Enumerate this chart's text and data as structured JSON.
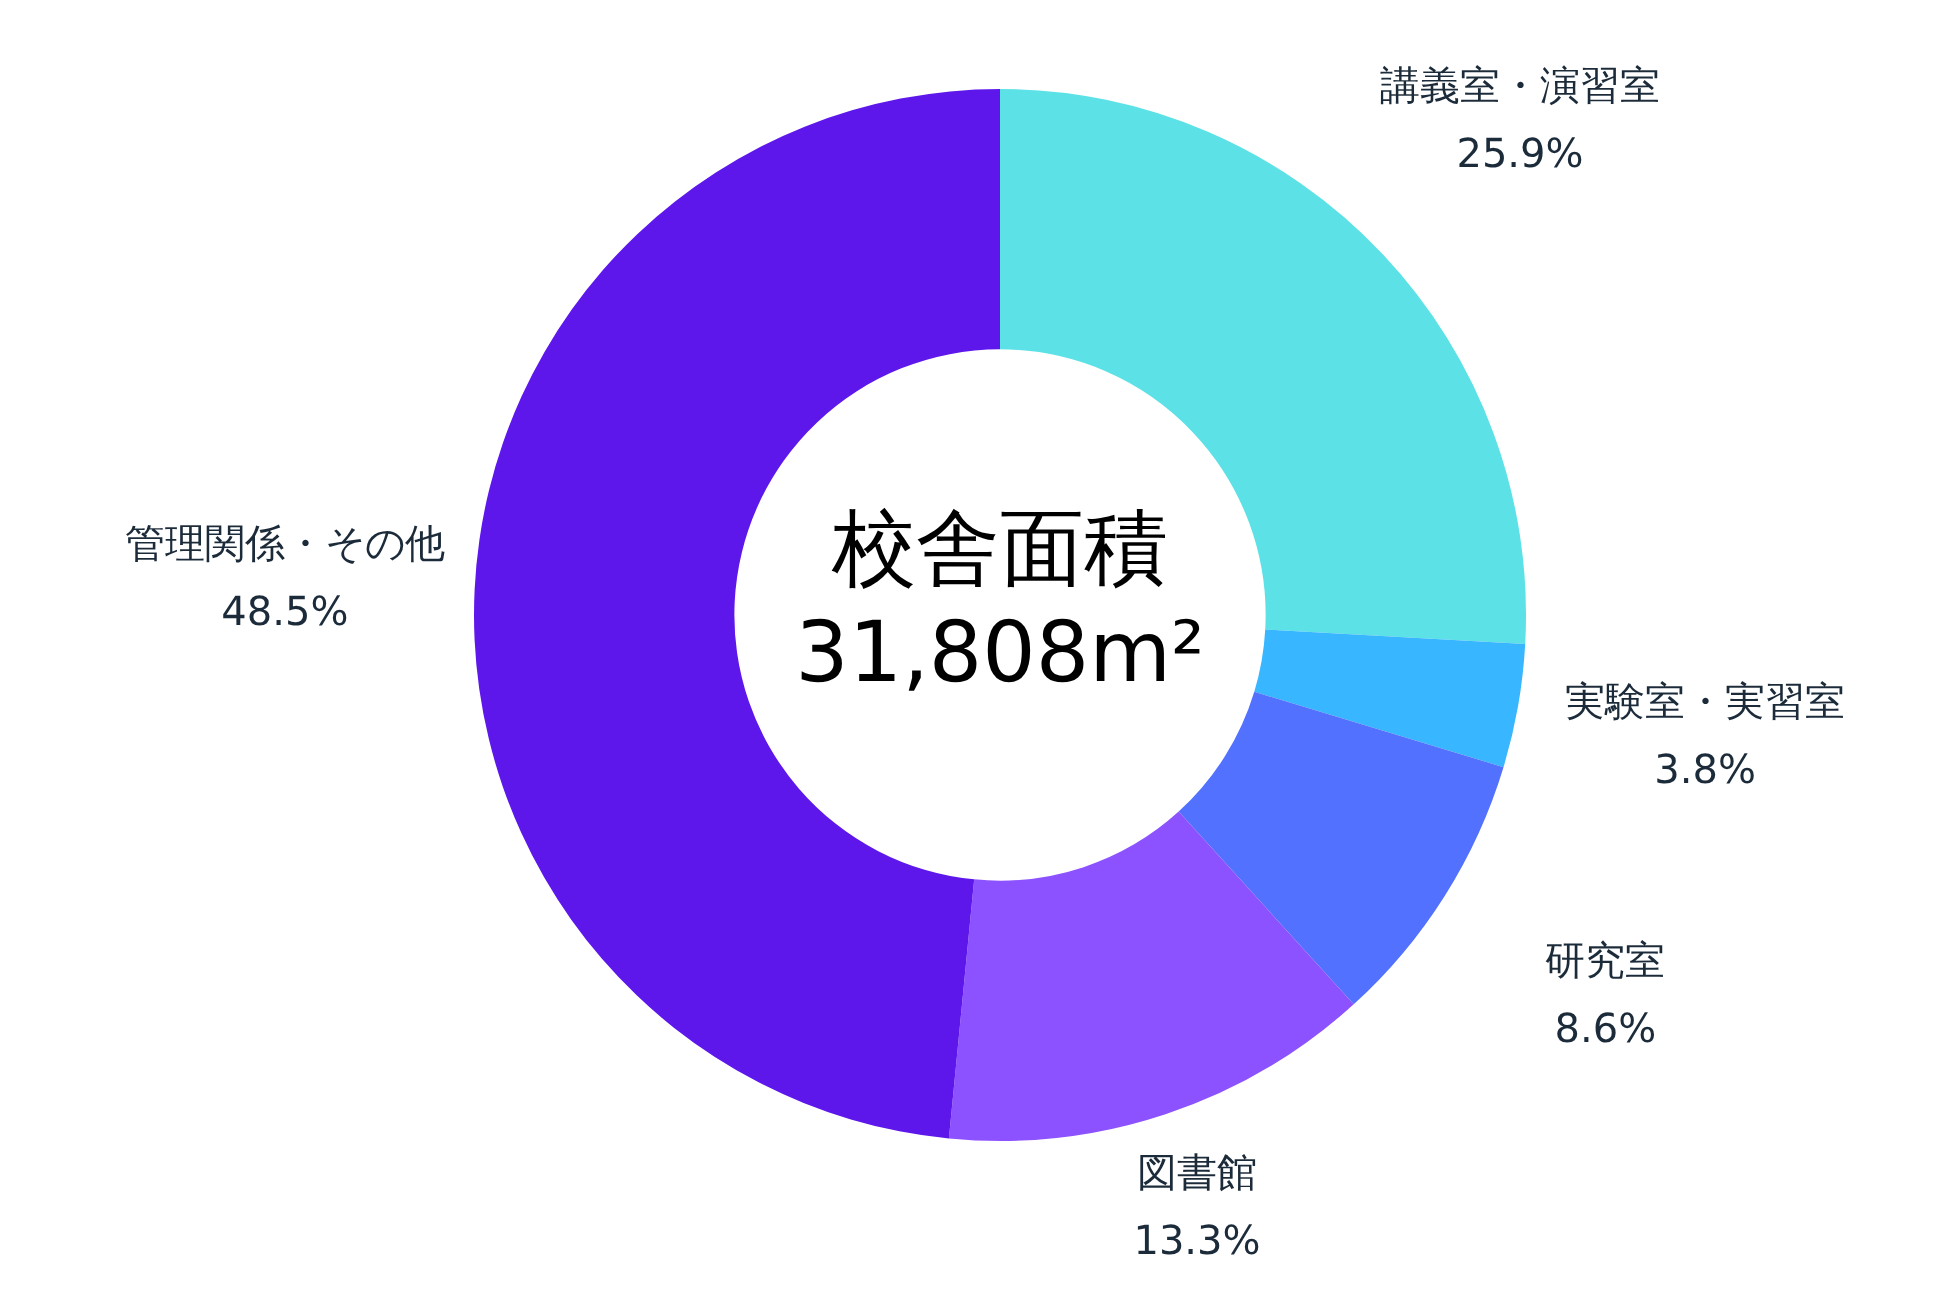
{
  "chart_data": {
    "type": "donut",
    "title": "校舎面積",
    "subtitle": "31,808m²",
    "categories": [
      "講義室・演習室",
      "実験室・実習室",
      "研究室",
      "図書館",
      "管理関係・その他"
    ],
    "values": [
      25.9,
      3.8,
      8.6,
      13.3,
      48.5
    ],
    "colors": [
      "#5ce1e6",
      "#38b6ff",
      "#5271ff",
      "#8c52ff",
      "#5e17eb"
    ],
    "value_labels": [
      "25.9%",
      "3.8%",
      "8.6%",
      "13.3%",
      "48.5%"
    ],
    "legend": false
  }
}
